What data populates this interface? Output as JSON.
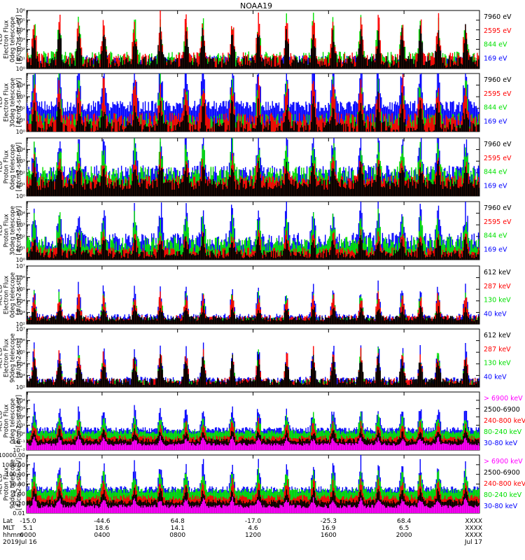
{
  "title": "NOAA19",
  "colors": {
    "black": "#000000",
    "red": "#ff0000",
    "green": "#00e000",
    "blue": "#0000ff",
    "magenta": "#ff00ff"
  },
  "chart_data": [
    {
      "type": "line",
      "instrument": "TED",
      "ylabel": [
        "TED",
        "Electron Flux",
        "0deg telescope",
        "[#/cm2-s-str-eV]"
      ],
      "yscale": "log",
      "ylim": [
        1,
        1000000
      ],
      "yticks": [
        {
          "v": 1,
          "label": "10⁰"
        },
        {
          "v": 10,
          "label": "10¹"
        },
        {
          "v": 100,
          "label": "10²"
        },
        {
          "v": 1000,
          "label": "10³"
        },
        {
          "v": 10000,
          "label": "10⁴"
        },
        {
          "v": 100000,
          "label": "10⁵"
        },
        {
          "v": 1000000,
          "label": "10⁶"
        }
      ],
      "series": [
        {
          "name": "7960 eV",
          "color": "#000000",
          "base": 5,
          "spread": 1.0,
          "peak": 4
        },
        {
          "name": "2595 eV",
          "color": "#ff0000",
          "base": 8,
          "spread": 1.3,
          "peak": 5.3
        },
        {
          "name": "844 eV",
          "color": "#00e000",
          "base": 12,
          "spread": 1.2,
          "peak": 4.8
        },
        {
          "name": "169 eV",
          "color": "#0000ff",
          "base": 10,
          "spread": 0.6,
          "peak": 3.0
        }
      ]
    },
    {
      "type": "line",
      "instrument": "TED",
      "ylabel": [
        "TED",
        "Electron Flux",
        "30deg telescope",
        "[#/cm2-s-str-eV]"
      ],
      "yscale": "log",
      "ylim": [
        1,
        100000
      ],
      "yticks": [
        {
          "v": 1,
          "label": "10⁰"
        },
        {
          "v": 10,
          "label": "10¹"
        },
        {
          "v": 100,
          "label": "10²"
        },
        {
          "v": 1000,
          "label": "10³"
        },
        {
          "v": 10000,
          "label": "10⁴"
        }
      ],
      "series": [
        {
          "name": "7960 eV",
          "color": "#000000",
          "base": 2,
          "spread": 1.0,
          "peak": 3
        },
        {
          "name": "2595 eV",
          "color": "#ff0000",
          "base": 8,
          "spread": 1.2,
          "peak": 4.5
        },
        {
          "name": "844 eV",
          "color": "#00e000",
          "base": 10,
          "spread": 1.0,
          "peak": 4.2
        },
        {
          "name": "169 eV",
          "color": "#0000ff",
          "base": 150,
          "spread": 0.8,
          "peak": 4.6
        }
      ]
    },
    {
      "type": "line",
      "instrument": "TED",
      "ylabel": [
        "TED",
        "Proton Flux",
        "0deg telescope",
        "[#/cm2-s-str-eV]"
      ],
      "yscale": "log",
      "ylim": [
        1,
        100000
      ],
      "yticks": [
        {
          "v": 1,
          "label": "10⁰"
        },
        {
          "v": 10,
          "label": "10¹"
        },
        {
          "v": 100,
          "label": "10²"
        },
        {
          "v": 1000,
          "label": "10³"
        },
        {
          "v": 10000,
          "label": "10⁴"
        }
      ],
      "series": [
        {
          "name": "7960 eV",
          "color": "#000000",
          "base": 10,
          "spread": 0.8,
          "peak": 2.2
        },
        {
          "name": "2595 eV",
          "color": "#ff0000",
          "base": 20,
          "spread": 0.8,
          "peak": 2.5
        },
        {
          "name": "844 eV",
          "color": "#00e000",
          "base": 60,
          "spread": 1.3,
          "peak": 3.2
        },
        {
          "name": "169 eV",
          "color": "#0000ff",
          "base": 100,
          "spread": 1.1,
          "peak": 4.0
        }
      ]
    },
    {
      "type": "line",
      "instrument": "TED",
      "ylabel": [
        "TED",
        "Proton Flux",
        "30deg telescope",
        "[#/cm2-s-str-eV]"
      ],
      "yscale": "log",
      "ylim": [
        1,
        100000
      ],
      "yticks": [
        {
          "v": 1,
          "label": "10⁰"
        },
        {
          "v": 10,
          "label": "10¹"
        },
        {
          "v": 100,
          "label": "10²"
        },
        {
          "v": 1000,
          "label": "10³"
        },
        {
          "v": 10000,
          "label": "10⁴"
        }
      ],
      "series": [
        {
          "name": "7960 eV",
          "color": "#000000",
          "base": 3,
          "spread": 0.6,
          "peak": 1.8
        },
        {
          "name": "2595 eV",
          "color": "#ff0000",
          "base": 5,
          "spread": 0.6,
          "peak": 2.0
        },
        {
          "name": "844 eV",
          "color": "#00e000",
          "base": 20,
          "spread": 1.2,
          "peak": 2.8
        },
        {
          "name": "169 eV",
          "color": "#0000ff",
          "base": 50,
          "spread": 1.1,
          "peak": 3.8
        }
      ]
    },
    {
      "type": "line",
      "instrument": "MEPED",
      "ylabel": [
        "MEPED",
        "Electron Flux",
        "0deg telescope",
        "[#/cm2-s-str]"
      ],
      "yscale": "log",
      "ylim": [
        100,
        10000000
      ],
      "yticks": [
        {
          "v": 100,
          "label": "10²"
        },
        {
          "v": 1000,
          "label": "10³"
        },
        {
          "v": 10000,
          "label": "10⁴"
        },
        {
          "v": 100000,
          "label": "10⁵"
        },
        {
          "v": 1000000,
          "label": "10⁶"
        },
        {
          "v": 10000000,
          "label": "10⁷"
        }
      ],
      "series": [
        {
          "name": "612 keV",
          "color": "#000000",
          "base": 300,
          "spread": 0.4,
          "peak": 1.2
        },
        {
          "name": "287 keV",
          "color": "#ff0000",
          "base": 300,
          "spread": 0.5,
          "peak": 2.6
        },
        {
          "name": "130 keV",
          "color": "#00e000",
          "base": 250,
          "spread": 0.3,
          "peak": 2.8
        },
        {
          "name": "40 keV",
          "color": "#0000ff",
          "base": 400,
          "spread": 0.5,
          "peak": 3.3
        }
      ]
    },
    {
      "type": "line",
      "instrument": "MEPED",
      "ylabel": [
        "MEPED",
        "Electron Flux",
        "90deg telescope",
        "[#/cm2-s-str]"
      ],
      "yscale": "log",
      "ylim": [
        100,
        10000000
      ],
      "yticks": [
        {
          "v": 100,
          "label": "10²"
        },
        {
          "v": 1000,
          "label": "10³"
        },
        {
          "v": 10000,
          "label": "10⁴"
        },
        {
          "v": 100000,
          "label": "10⁵"
        },
        {
          "v": 1000000,
          "label": "10⁶"
        },
        {
          "v": 10000000,
          "label": "10⁷"
        }
      ],
      "series": [
        {
          "name": "612 keV",
          "color": "#000000",
          "base": 300,
          "spread": 0.5,
          "peak": 2.6
        },
        {
          "name": "287 keV",
          "color": "#ff0000",
          "base": 300,
          "spread": 0.5,
          "peak": 3.0
        },
        {
          "name": "130 keV",
          "color": "#00e000",
          "base": 250,
          "spread": 0.4,
          "peak": 3.2
        },
        {
          "name": "40 keV",
          "color": "#0000ff",
          "base": 400,
          "spread": 0.5,
          "peak": 3.6
        }
      ]
    },
    {
      "type": "line",
      "instrument": "MEPED",
      "ylabel": [
        "MEPED",
        "Proton Flux",
        "0deg telescope",
        "[#/cm2-s-str-keV]"
      ],
      "yscale": "log",
      "ylim": [
        0.01,
        100000
      ],
      "yticks": [
        {
          "v": 0.01,
          "label": "10⁻²"
        },
        {
          "v": 0.1,
          "label": "10⁻¹"
        },
        {
          "v": 1,
          "label": "10⁰"
        },
        {
          "v": 10,
          "label": "10¹"
        },
        {
          "v": 100,
          "label": "10²"
        },
        {
          "v": 1000,
          "label": "10³"
        },
        {
          "v": 10000,
          "label": "10⁴"
        }
      ],
      "series": [
        {
          "name": "> 6900 keV",
          "color": "#ff00ff",
          "base": 0.05,
          "spread": 0.3,
          "peak": 1.0
        },
        {
          "name": "2500-6900",
          "color": "#000000",
          "base": 0.15,
          "spread": 0.4,
          "peak": 1.5
        },
        {
          "name": "240-800 keV",
          "color": "#ff0000",
          "base": 0.3,
          "spread": 0.5,
          "peak": 2.3
        },
        {
          "name": "80-240 keV",
          "color": "#00e000",
          "base": 1.5,
          "spread": 0.4,
          "peak": 2.5
        },
        {
          "name": "30-80 keV",
          "color": "#0000ff",
          "base": 3,
          "spread": 0.5,
          "peak": 3.4
        }
      ]
    },
    {
      "type": "line",
      "instrument": "MEPED",
      "ylabel": [
        "MEPED",
        "Proton Flux",
        "90deg telescope",
        "[#/cm2-s-str-keV]"
      ],
      "yscale": "log",
      "ylim": [
        0.01,
        10000
      ],
      "yticks": [
        {
          "v": 0.01,
          "label": "0.01"
        },
        {
          "v": 0.1,
          "label": "0.10"
        },
        {
          "v": 1,
          "label": "1.00"
        },
        {
          "v": 10,
          "label": "10.00"
        },
        {
          "v": 100,
          "label": "100.00"
        },
        {
          "v": 1000,
          "label": "1000.00"
        },
        {
          "v": 10000,
          "label": "10000.00"
        }
      ],
      "series": [
        {
          "name": "> 6900 keV",
          "color": "#ff00ff",
          "base": 0.05,
          "spread": 0.3,
          "peak": 1.0
        },
        {
          "name": "2500-6900",
          "color": "#000000",
          "base": 0.15,
          "spread": 0.4,
          "peak": 1.6
        },
        {
          "name": "240-800 keV",
          "color": "#ff0000",
          "base": 0.4,
          "spread": 0.5,
          "peak": 2.3
        },
        {
          "name": "80-240 keV",
          "color": "#00e000",
          "base": 2,
          "spread": 0.4,
          "peak": 2.6
        },
        {
          "name": "30-80 keV",
          "color": "#0000ff",
          "base": 3,
          "spread": 0.5,
          "peak": 3.5
        }
      ]
    }
  ],
  "x_axis": {
    "row_labels": [
      "Lat",
      "MLT",
      "hhmm",
      "2019"
    ],
    "ticks": [
      {
        "hour": 0,
        "lat": "-15.0",
        "mlt": "5.1",
        "hhmm": "0000",
        "date": "Jul 16"
      },
      {
        "hour": 4,
        "lat": "-44.6",
        "mlt": "18.6",
        "hhmm": "0400",
        "date": ""
      },
      {
        "hour": 8,
        "lat": "64.8",
        "mlt": "14.1",
        "hhmm": "0800",
        "date": ""
      },
      {
        "hour": 12,
        "lat": "-17.0",
        "mlt": "4.6",
        "hhmm": "1200",
        "date": ""
      },
      {
        "hour": 16,
        "lat": "-25.3",
        "mlt": "16.9",
        "hhmm": "1600",
        "date": ""
      },
      {
        "hour": 20,
        "lat": "68.4",
        "mlt": "6.5",
        "hhmm": "2000",
        "date": ""
      },
      {
        "hour": 24,
        "lat": "XXXX",
        "mlt": "XXXX",
        "hhmm": "XXXX",
        "date": "Jul 17"
      }
    ],
    "range_hours": [
      0,
      24
    ]
  }
}
